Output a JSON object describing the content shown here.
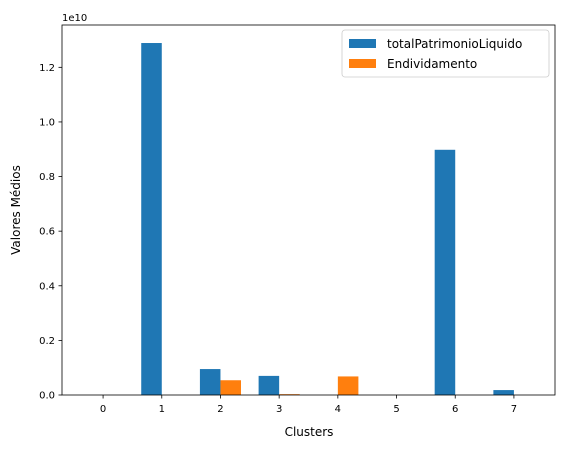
{
  "chart_data": {
    "type": "bar",
    "title": "",
    "xlabel": "Clusters",
    "ylabel": "Valores Médios",
    "offset_label": "1e10",
    "categories": [
      "0",
      "1",
      "2",
      "3",
      "4",
      "5",
      "6",
      "7"
    ],
    "y_ticks": [
      0.0,
      0.2,
      0.4,
      0.6,
      0.8,
      1.0,
      1.2
    ],
    "y_tick_labels": [
      "0.0",
      "0.2",
      "0.4",
      "0.6",
      "0.8",
      "1.0",
      "1.2"
    ],
    "ylim": [
      0,
      1.355
    ],
    "xlim": [
      -0.7,
      7.7
    ],
    "grid": false,
    "legend_position": "top-right",
    "series": [
      {
        "name": "totalPatrimonioLiquido",
        "color": "#1f77b4",
        "values": [
          0.0,
          1.289,
          0.095,
          0.07,
          0.0,
          0.0,
          0.898,
          0.018
        ]
      },
      {
        "name": "Endividamento",
        "color": "#ff7f0e",
        "values": [
          0.0,
          0.0,
          0.054,
          0.003,
          0.068,
          0.0,
          0.0,
          0.0
        ]
      }
    ]
  }
}
